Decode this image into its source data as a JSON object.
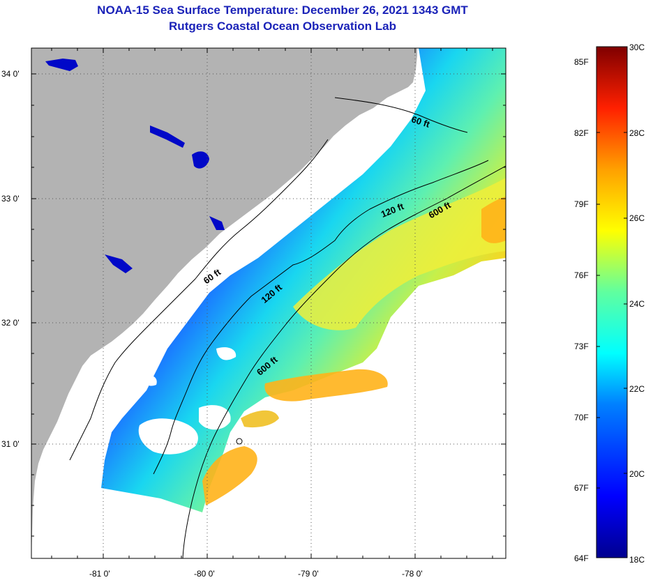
{
  "header": {
    "title": "NOAA-15 Sea Surface Temperature:  December 26, 2021 1343 GMT",
    "subtitle": "Rutgers Coastal Ocean Observation Lab"
  },
  "map": {
    "lat_ticks": [
      "34 0'",
      "33 0'",
      "32 0'",
      "31 0'"
    ],
    "lon_ticks": [
      "-81 0'",
      "-80 0'",
      "-79 0'",
      "-78 0'"
    ],
    "contours": [
      {
        "label": "60 ft",
        "depth": 60
      },
      {
        "label": "120 ft",
        "depth": 120
      },
      {
        "label": "600 ft",
        "depth": 600
      }
    ],
    "contour_labels": [
      "60 ft",
      "60 ft",
      "120 ft",
      "120 ft",
      "600 ft",
      "600 ft"
    ],
    "colors": {
      "land": "#b3b3b3",
      "no_data": "#ffffff",
      "title": "#1a22b8"
    }
  },
  "colorbar": {
    "fahrenheit": [
      "85F",
      "82F",
      "79F",
      "76F",
      "73F",
      "70F",
      "67F",
      "64F"
    ],
    "celsius": [
      "30C",
      "28C",
      "26C",
      "24C",
      "22C",
      "20C",
      "18C"
    ],
    "min_c": 18,
    "max_c": 30
  }
}
